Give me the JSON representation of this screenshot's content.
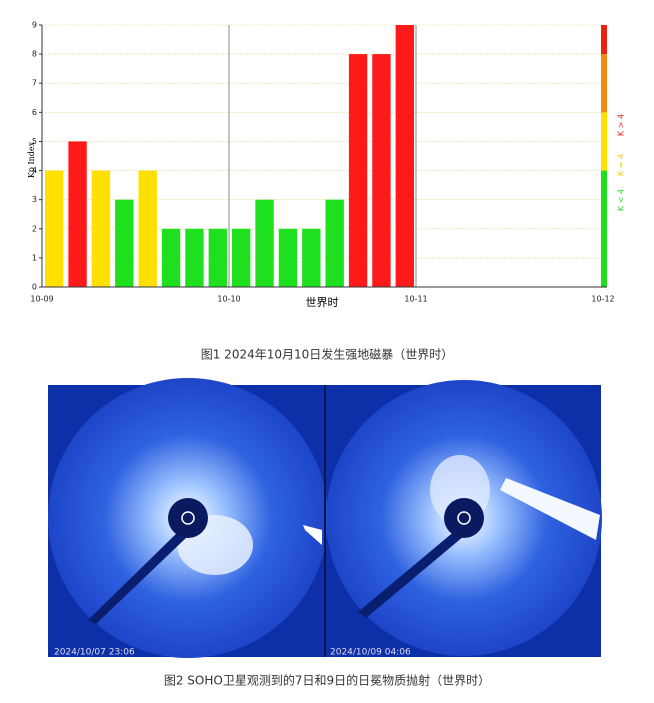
{
  "chart_data": {
    "type": "bar",
    "ylabel": "Kp Index",
    "xlabel": "世界时",
    "categories": [
      null,
      null,
      null,
      null,
      null,
      null,
      null,
      null,
      null,
      null,
      null,
      null,
      null,
      null,
      null,
      null
    ],
    "values": [
      4,
      5,
      4,
      3,
      4,
      2,
      2,
      2,
      2,
      3,
      2,
      2,
      3,
      8,
      8,
      9
    ],
    "colors": [
      "#ffe000",
      "#ff1a1a",
      "#ffe000",
      "#1ee01e",
      "#ffe000",
      "#1ee01e",
      "#1ee01e",
      "#1ee01e",
      "#1ee01e",
      "#1ee01e",
      "#1ee01e",
      "#1ee01e",
      "#1ee01e",
      "#ff1a1a",
      "#ff1a1a",
      "#ff1a1a"
    ],
    "day_labels": [
      "10-09",
      "10-10",
      "10-11",
      "10-12"
    ],
    "ylim": [
      0,
      9
    ],
    "yticks": [
      0,
      1,
      2,
      3,
      4,
      5,
      6,
      7,
      8,
      9
    ],
    "grid": true,
    "scale": [
      {
        "from": 0,
        "to": 4,
        "color": "#1ee01e"
      },
      {
        "from": 4,
        "to": 6,
        "color": "#ffe000"
      },
      {
        "from": 6,
        "to": 8,
        "color": "#f08a10"
      },
      {
        "from": 8,
        "to": 9,
        "color": "#ee2010"
      }
    ],
    "scale_labels": [
      {
        "text": "K < 4",
        "color": "#1ee01e"
      },
      {
        "text": "K = 4",
        "color": "#e8d000"
      },
      {
        "text": "K > 4",
        "color": "#ee2010"
      }
    ]
  },
  "captions": [
    "图1  2024年10月10日发生强地磁暴（世界时）",
    "图2 SOHO卫星观测到的7日和9日的日冕物质抛射（世界时）"
  ],
  "image_stamps": [
    "2024/10/07 23:06",
    "2024/10/09 04:06"
  ]
}
